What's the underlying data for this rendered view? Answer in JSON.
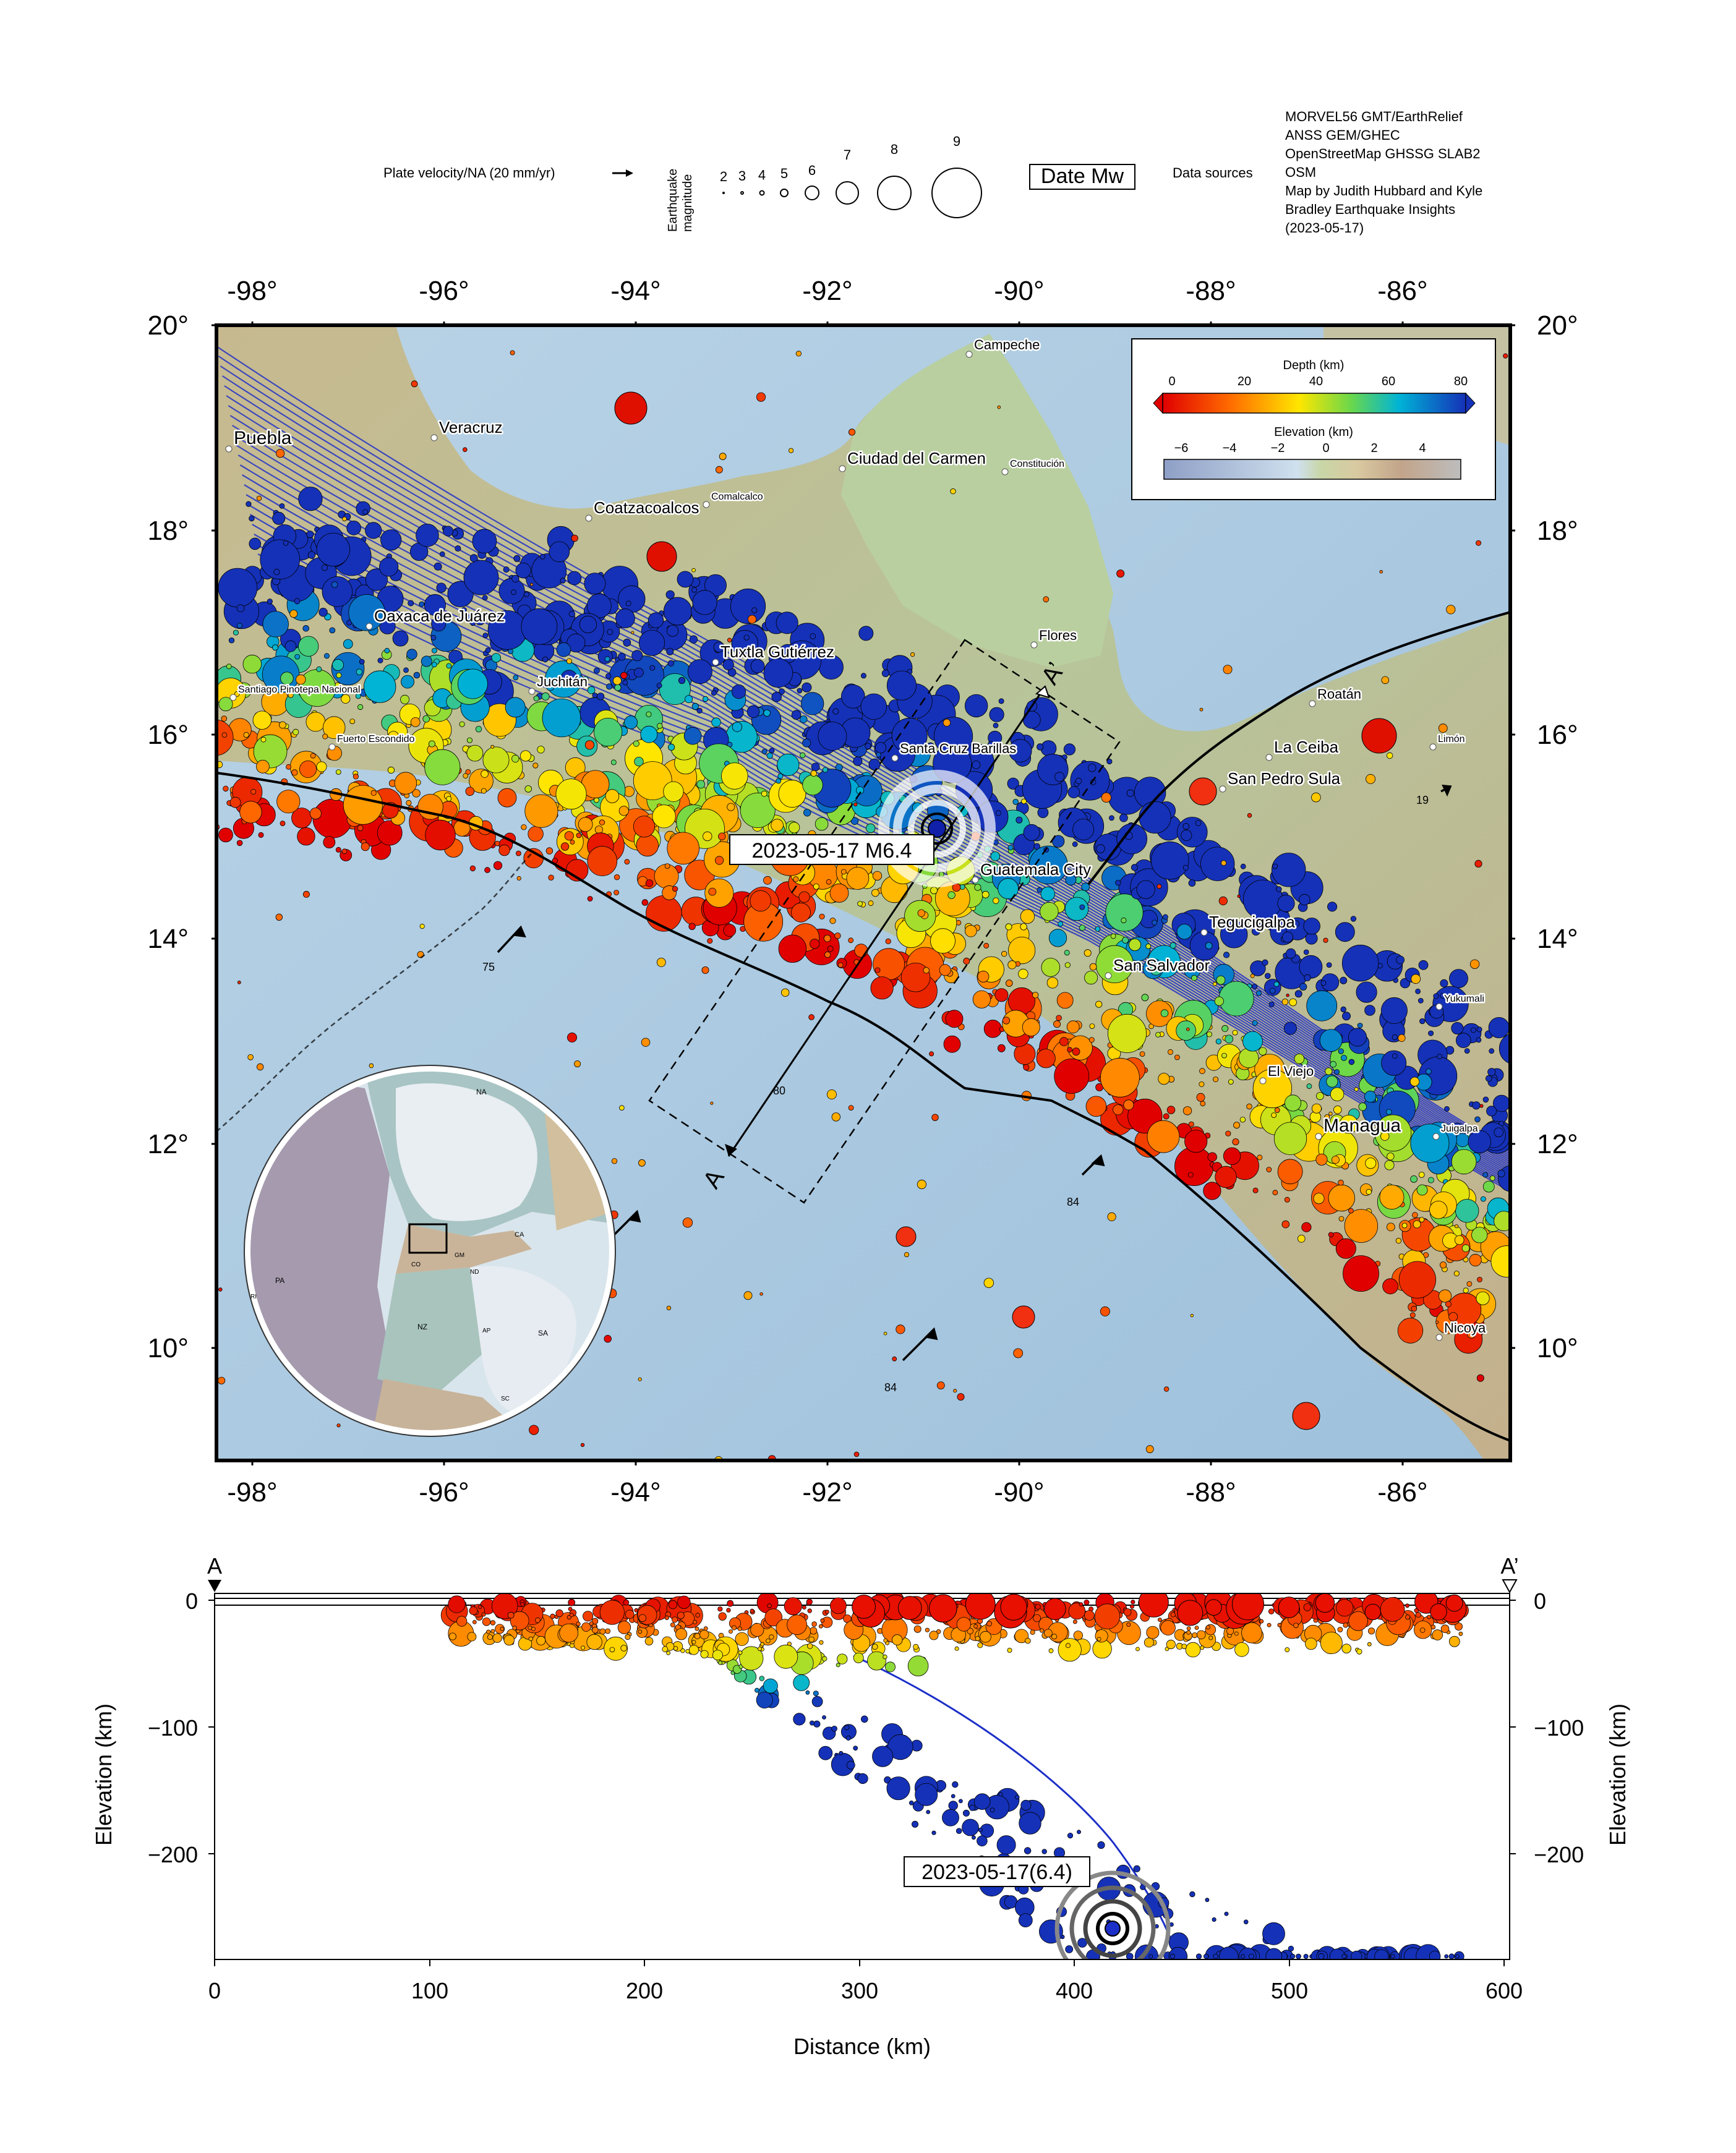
{
  "header": {
    "plate_velocity_label": "Plate velocity/NA (20 mm/yr)",
    "magnitude_axis_label": [
      "Earthquake",
      "magnitude"
    ],
    "magnitudes": [
      "2",
      "3",
      "4",
      "5",
      "6",
      "7",
      "8",
      "9"
    ],
    "date_mw_box": "Date Mw",
    "data_sources_label": "Data sources",
    "data_sources_text": [
      "MORVEL56 GMT/EarthRelief",
      "ANSS GEM/GHEC",
      "OpenStreetMap GHSSG SLAB2",
      "OSM",
      "Map by Judith Hubbard and Kyle",
      "Bradley Earthquake Insights",
      "(2023-05-17)"
    ]
  },
  "map": {
    "lon_ticks": [
      "-98°",
      "-96°",
      "-94°",
      "-92°",
      "-90°",
      "-88°",
      "-86°"
    ],
    "lat_ticks": [
      "20°",
      "18°",
      "16°",
      "14°",
      "12°",
      "10°"
    ],
    "colors": {
      "ocean": "#a9c8e0",
      "land": "#c9c7a5",
      "yucatan": "#b6cc9f",
      "trench": "#000000",
      "slab": "#1f2fc8",
      "event_ring": "#ffffff"
    },
    "cities": [
      {
        "name": "Campeche",
        "size": "small"
      },
      {
        "name": "Veracruz",
        "size": "medium"
      },
      {
        "name": "Puebla",
        "size": "large"
      },
      {
        "name": "Ciudad del Carmen",
        "size": "medium"
      },
      {
        "name": "Constitución",
        "size": "tiny"
      },
      {
        "name": "Coatzacoalcos",
        "size": "medium"
      },
      {
        "name": "Comalcalco",
        "size": "tiny"
      },
      {
        "name": "Oaxaca de Juárez",
        "size": "medium"
      },
      {
        "name": "Tuxtla Gutiérrez",
        "size": "medium"
      },
      {
        "name": "Flores",
        "size": "small"
      },
      {
        "name": "Juchitán",
        "size": "small"
      },
      {
        "name": "Santiago Pinotepa Nacional",
        "size": "tiny"
      },
      {
        "name": "Roatán",
        "size": "small"
      },
      {
        "name": "Fuerto Escondido",
        "size": "tiny"
      },
      {
        "name": "Santa Cruz Barillas",
        "size": "small"
      },
      {
        "name": "Limón",
        "size": "tiny"
      },
      {
        "name": "La Ceiba",
        "size": "medium"
      },
      {
        "name": "San Pedro Sula",
        "size": "medium"
      },
      {
        "name": "Guatemala City",
        "size": "medium"
      },
      {
        "name": "Tegucigalpa",
        "size": "medium"
      },
      {
        "name": "San Salvador",
        "size": "medium"
      },
      {
        "name": "Yukumali",
        "size": "tiny"
      },
      {
        "name": "El Viejo",
        "size": "small"
      },
      {
        "name": "Managua",
        "size": "large"
      },
      {
        "name": "Juigalpa",
        "size": "tiny"
      },
      {
        "name": "Nicoya",
        "size": "small"
      }
    ],
    "event_label": "2023-05-17 M6.4",
    "profile_start": "A",
    "profile_end": "A’",
    "velocities": [
      "75",
      "80",
      "84",
      "84",
      "19"
    ],
    "depth_legend": {
      "title": "Depth (km)",
      "ticks": [
        "0",
        "20",
        "40",
        "60",
        "80"
      ],
      "colors": [
        "#e00000",
        "#ff6a00",
        "#ffe600",
        "#6bd84a",
        "#00b3d6",
        "#1531b8"
      ]
    },
    "elevation_legend": {
      "title": "Elevation (km)",
      "ticks": [
        "−6",
        "−4",
        "−2",
        "0",
        "2",
        "4"
      ]
    },
    "inset_plates": [
      "NA",
      "PA",
      "CA",
      "CO",
      "GM",
      "ND",
      "RI",
      "NZ",
      "AP",
      "SA",
      "SC"
    ]
  },
  "profile": {
    "start": "A",
    "end": "A’",
    "y_ticks": [
      "0",
      "−100",
      "−200"
    ],
    "x_ticks": [
      "0",
      "100",
      "200",
      "300",
      "400",
      "500",
      "600"
    ],
    "y_label": "Elevation (km)",
    "x_label": "Distance (km)",
    "event_label": "2023-05-17(6.4)"
  }
}
